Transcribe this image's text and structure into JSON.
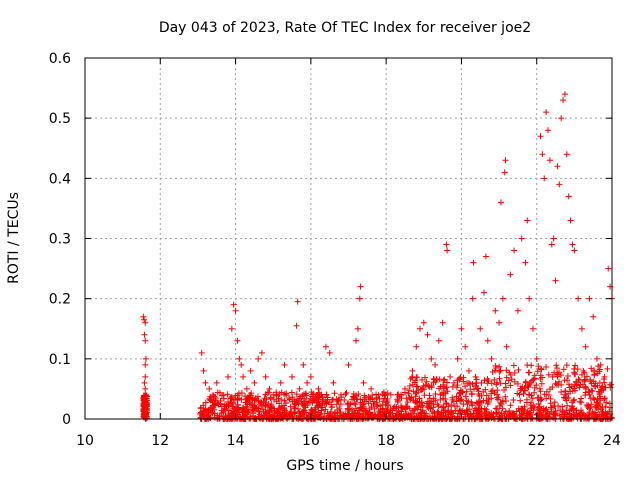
{
  "chart_data": {
    "type": "scatter",
    "title": "Day 043 of 2023, Rate Of TEC Index for receiver joe2",
    "xlabel": "GPS time / hours",
    "ylabel": "ROTI / TECUs",
    "xlim": [
      10,
      24
    ],
    "ylim": [
      0,
      0.6
    ],
    "xticks": [
      10,
      12,
      14,
      16,
      18,
      20,
      22,
      24
    ],
    "yticks": [
      0,
      0.1,
      0.2,
      0.3,
      0.4,
      0.5,
      0.6
    ],
    "xtick_labels": [
      "10",
      "12",
      "14",
      "16",
      "18",
      "20",
      "22",
      "24"
    ],
    "ytick_labels": [
      "0",
      "0.1",
      "0.2",
      "0.3",
      "0.4",
      "0.5",
      "0.6"
    ],
    "grid": true,
    "marker": "plus",
    "series": [
      {
        "color": "#ff0000",
        "points": [
          [
            11.55,
            0.17
          ],
          [
            11.57,
            0.165
          ],
          [
            11.6,
            0.16
          ],
          [
            11.58,
            0.14
          ],
          [
            11.6,
            0.13
          ],
          [
            11.62,
            0.1
          ],
          [
            11.6,
            0.09
          ],
          [
            11.58,
            0.06
          ],
          [
            11.6,
            0.05
          ],
          [
            11.62,
            0.04
          ],
          [
            11.57,
            0.03
          ],
          [
            11.6,
            0.02
          ],
          [
            11.58,
            0.01
          ],
          [
            11.62,
            0.005
          ],
          [
            11.6,
            0.07
          ],
          [
            13.1,
            0.11
          ],
          [
            13.15,
            0.08
          ],
          [
            13.2,
            0.06
          ],
          [
            13.3,
            0.05
          ],
          [
            13.4,
            0.04
          ],
          [
            13.5,
            0.06
          ],
          [
            13.6,
            0.03
          ],
          [
            13.8,
            0.07
          ],
          [
            13.9,
            0.15
          ],
          [
            13.95,
            0.19
          ],
          [
            14.0,
            0.18
          ],
          [
            14.05,
            0.13
          ],
          [
            14.1,
            0.1
          ],
          [
            14.15,
            0.09
          ],
          [
            14.2,
            0.07
          ],
          [
            14.3,
            0.05
          ],
          [
            14.4,
            0.08
          ],
          [
            14.5,
            0.06
          ],
          [
            14.6,
            0.1
          ],
          [
            14.7,
            0.11
          ],
          [
            14.8,
            0.07
          ],
          [
            14.9,
            0.05
          ],
          [
            15.0,
            0.04
          ],
          [
            15.2,
            0.06
          ],
          [
            15.3,
            0.09
          ],
          [
            15.5,
            0.07
          ],
          [
            15.62,
            0.155
          ],
          [
            15.65,
            0.195
          ],
          [
            15.7,
            0.05
          ],
          [
            15.8,
            0.09
          ],
          [
            15.9,
            0.06
          ],
          [
            16.0,
            0.07
          ],
          [
            16.2,
            0.05
          ],
          [
            16.4,
            0.12
          ],
          [
            16.5,
            0.11
          ],
          [
            16.6,
            0.06
          ],
          [
            16.8,
            0.04
          ],
          [
            17.0,
            0.09
          ],
          [
            17.2,
            0.13
          ],
          [
            17.25,
            0.15
          ],
          [
            17.3,
            0.2
          ],
          [
            17.32,
            0.22
          ],
          [
            17.4,
            0.06
          ],
          [
            17.6,
            0.05
          ],
          [
            17.8,
            0.04
          ],
          [
            18.0,
            0.03
          ],
          [
            18.3,
            0.04
          ],
          [
            18.5,
            0.05
          ],
          [
            18.7,
            0.08
          ],
          [
            18.8,
            0.12
          ],
          [
            18.9,
            0.15
          ],
          [
            19.0,
            0.16
          ],
          [
            19.1,
            0.14
          ],
          [
            19.2,
            0.1
          ],
          [
            19.3,
            0.09
          ],
          [
            19.4,
            0.13
          ],
          [
            19.5,
            0.16
          ],
          [
            19.6,
            0.29
          ],
          [
            19.62,
            0.28
          ],
          [
            19.7,
            0.07
          ],
          [
            19.8,
            0.06
          ],
          [
            19.9,
            0.1
          ],
          [
            20.0,
            0.15
          ],
          [
            20.1,
            0.12
          ],
          [
            20.2,
            0.08
          ],
          [
            20.3,
            0.2
          ],
          [
            20.32,
            0.26
          ],
          [
            20.4,
            0.06
          ],
          [
            20.5,
            0.15
          ],
          [
            20.6,
            0.21
          ],
          [
            20.65,
            0.27
          ],
          [
            20.7,
            0.13
          ],
          [
            20.8,
            0.1
          ],
          [
            20.9,
            0.18
          ],
          [
            21.0,
            0.16
          ],
          [
            21.05,
            0.36
          ],
          [
            21.1,
            0.2
          ],
          [
            21.15,
            0.41
          ],
          [
            21.17,
            0.43
          ],
          [
            21.2,
            0.12
          ],
          [
            21.3,
            0.24
          ],
          [
            21.4,
            0.28
          ],
          [
            21.5,
            0.18
          ],
          [
            21.6,
            0.3
          ],
          [
            21.7,
            0.26
          ],
          [
            21.75,
            0.33
          ],
          [
            21.8,
            0.2
          ],
          [
            21.9,
            0.15
          ],
          [
            22.0,
            0.1
          ],
          [
            22.1,
            0.47
          ],
          [
            22.15,
            0.44
          ],
          [
            22.2,
            0.4
          ],
          [
            22.25,
            0.51
          ],
          [
            22.3,
            0.48
          ],
          [
            22.35,
            0.43
          ],
          [
            22.4,
            0.29
          ],
          [
            22.45,
            0.3
          ],
          [
            22.5,
            0.23
          ],
          [
            22.55,
            0.42
          ],
          [
            22.6,
            0.39
          ],
          [
            22.65,
            0.5
          ],
          [
            22.7,
            0.53
          ],
          [
            22.75,
            0.54
          ],
          [
            22.8,
            0.44
          ],
          [
            22.85,
            0.37
          ],
          [
            22.9,
            0.33
          ],
          [
            22.95,
            0.29
          ],
          [
            23.0,
            0.28
          ],
          [
            23.1,
            0.2
          ],
          [
            23.2,
            0.15
          ],
          [
            23.3,
            0.12
          ],
          [
            23.4,
            0.2
          ],
          [
            23.5,
            0.17
          ],
          [
            23.6,
            0.1
          ],
          [
            23.7,
            0.09
          ],
          [
            23.8,
            0.07
          ],
          [
            23.9,
            0.25
          ],
          [
            23.95,
            0.22
          ],
          [
            24.0,
            0.2
          ]
        ]
      }
    ]
  }
}
